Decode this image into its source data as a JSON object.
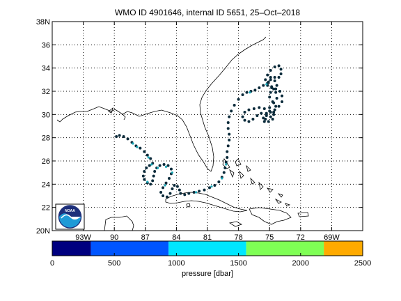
{
  "chart_data": {
    "type": "scatter",
    "title": "WMO ID 4901646, internal ID 5651, 25–Oct–2018",
    "x_range_lon": [
      -96,
      -66
    ],
    "y_range_lat": [
      20,
      38
    ],
    "y_ticks": [
      "20N",
      "22",
      "24",
      "26",
      "28",
      "30",
      "32",
      "34",
      "36",
      "38N"
    ],
    "y_tick_values": [
      20,
      22,
      24,
      26,
      28,
      30,
      32,
      34,
      36,
      38
    ],
    "x_ticks": [
      "93W",
      "90",
      "87",
      "84",
      "81",
      "78",
      "75",
      "72",
      "69W"
    ],
    "x_tick_values": [
      -93,
      -90,
      -87,
      -84,
      -81,
      -78,
      -75,
      -72,
      -69
    ],
    "grid": true,
    "colorbar": {
      "label": "pressure [dbar]",
      "ticks": [
        "0",
        "500",
        "1000",
        "1500",
        "2000",
        "2500"
      ],
      "tick_values": [
        0,
        500,
        1000,
        1500,
        2000,
        2500
      ],
      "segments": [
        {
          "from": 0,
          "to": 312,
          "color": "#00007f"
        },
        {
          "from": 312,
          "to": 937,
          "color": "#0055ff"
        },
        {
          "from": 937,
          "to": 1562,
          "color": "#00e6ff"
        },
        {
          "from": 1562,
          "to": 2187,
          "color": "#7fff55"
        },
        {
          "from": 2187,
          "to": 2500,
          "color": "#ffaa00"
        }
      ]
    },
    "track_color": "#0a2a3a",
    "highlight_color": "#1aa9b9",
    "track_lonlat": [
      [
        -89.8,
        28.1
      ],
      [
        -89.5,
        28.2
      ],
      [
        -89.1,
        28.1
      ],
      [
        -88.7,
        27.9
      ],
      [
        -88.3,
        27.6
      ],
      [
        -87.9,
        27.3
      ],
      [
        -87.5,
        27.1
      ],
      [
        -87.1,
        26.8
      ],
      [
        -86.8,
        26.5
      ],
      [
        -86.5,
        26.2
      ],
      [
        -86.3,
        25.8
      ],
      [
        -86.6,
        25.6
      ],
      [
        -86.9,
        25.4
      ],
      [
        -87.1,
        25.1
      ],
      [
        -87.2,
        24.7
      ],
      [
        -87.1,
        24.4
      ],
      [
        -86.8,
        24.1
      ],
      [
        -86.5,
        24.0
      ],
      [
        -86.3,
        24.3
      ],
      [
        -86.2,
        24.7
      ],
      [
        -86.1,
        25.1
      ],
      [
        -85.9,
        25.4
      ],
      [
        -85.6,
        25.6
      ],
      [
        -85.2,
        25.7
      ],
      [
        -84.8,
        25.6
      ],
      [
        -84.5,
        25.3
      ],
      [
        -84.5,
        24.9
      ],
      [
        -84.7,
        24.5
      ],
      [
        -85.0,
        24.1
      ],
      [
        -85.3,
        23.7
      ],
      [
        -85.5,
        23.3
      ],
      [
        -85.3,
        23.0
      ],
      [
        -84.9,
        22.9
      ],
      [
        -84.6,
        23.2
      ],
      [
        -84.4,
        23.6
      ],
      [
        -84.2,
        23.9
      ],
      [
        -83.9,
        23.8
      ],
      [
        -83.7,
        23.5
      ],
      [
        -83.6,
        23.2
      ],
      [
        -83.2,
        23.1
      ],
      [
        -82.8,
        23.2
      ],
      [
        -82.3,
        23.3
      ],
      [
        -81.8,
        23.4
      ],
      [
        -81.3,
        23.5
      ],
      [
        -80.8,
        23.7
      ],
      [
        -80.3,
        23.9
      ],
      [
        -79.9,
        24.2
      ],
      [
        -79.6,
        24.6
      ],
      [
        -79.4,
        25.0
      ],
      [
        -79.3,
        25.4
      ],
      [
        -79.2,
        25.9
      ],
      [
        -79.1,
        26.3
      ],
      [
        -79.1,
        26.8
      ],
      [
        -79.0,
        27.3
      ],
      [
        -78.9,
        27.8
      ],
      [
        -78.9,
        28.3
      ],
      [
        -79.0,
        28.8
      ],
      [
        -79.0,
        29.3
      ],
      [
        -78.9,
        29.8
      ],
      [
        -78.7,
        30.3
      ],
      [
        -78.4,
        30.8
      ],
      [
        -78.0,
        31.3
      ],
      [
        -77.6,
        31.7
      ],
      [
        -77.2,
        31.9
      ],
      [
        -76.8,
        32.0
      ],
      [
        -76.4,
        32.1
      ],
      [
        -76.0,
        32.3
      ],
      [
        -75.6,
        32.5
      ],
      [
        -75.2,
        32.7
      ],
      [
        -74.9,
        33.0
      ],
      [
        -74.5,
        33.2
      ],
      [
        -74.1,
        33.2
      ],
      [
        -73.9,
        33.5
      ],
      [
        -73.9,
        33.9
      ],
      [
        -74.1,
        34.2
      ],
      [
        -74.5,
        34.1
      ],
      [
        -74.9,
        33.8
      ],
      [
        -75.2,
        33.4
      ],
      [
        -75.4,
        33.0
      ],
      [
        -75.2,
        32.5
      ],
      [
        -74.8,
        32.3
      ],
      [
        -74.4,
        32.2
      ],
      [
        -74.0,
        32.0
      ],
      [
        -73.8,
        31.6
      ],
      [
        -73.8,
        31.1
      ],
      [
        -74.1,
        30.7
      ],
      [
        -74.5,
        30.4
      ],
      [
        -74.9,
        30.2
      ],
      [
        -75.3,
        30.0
      ],
      [
        -75.6,
        29.7
      ],
      [
        -75.5,
        29.4
      ],
      [
        -75.1,
        29.4
      ],
      [
        -74.7,
        29.6
      ],
      [
        -74.6,
        30.0
      ],
      [
        -75.0,
        30.3
      ],
      [
        -75.5,
        30.5
      ],
      [
        -76.0,
        30.6
      ],
      [
        -76.5,
        30.5
      ],
      [
        -77.0,
        30.4
      ],
      [
        -77.4,
        30.2
      ],
      [
        -77.6,
        29.8
      ],
      [
        -77.4,
        29.5
      ],
      [
        -77.0,
        29.4
      ],
      [
        -76.6,
        29.6
      ],
      [
        -76.2,
        29.9
      ],
      [
        -75.8,
        30.1
      ],
      [
        -75.3,
        29.9
      ],
      [
        -74.9,
        29.8
      ],
      [
        -74.6,
        30.2
      ],
      [
        -74.4,
        30.7
      ],
      [
        -74.7,
        31.1
      ],
      [
        -75.0,
        31.5
      ],
      [
        -74.9,
        31.9
      ],
      [
        -74.6,
        32.2
      ],
      [
        -74.3,
        32.5
      ],
      [
        -74.5,
        32.9
      ],
      [
        -74.9,
        33.2
      ],
      [
        -75.1,
        32.8
      ],
      [
        -74.8,
        32.4
      ],
      [
        -74.4,
        31.9
      ],
      [
        -74.3,
        31.4
      ],
      [
        -74.6,
        31.0
      ],
      [
        -75.0,
        30.6
      ],
      [
        -75.3,
        30.1
      ],
      [
        -75.4,
        29.6
      ]
    ],
    "highlight_lonlat": [
      [
        -88.2,
        27.5
      ],
      [
        -87.8,
        27.2
      ],
      [
        -86.7,
        26.3
      ],
      [
        -86.4,
        25.7
      ],
      [
        -85.8,
        25.4
      ],
      [
        -85.0,
        25.5
      ],
      [
        -84.4,
        25.0
      ],
      [
        -86.8,
        24.2
      ],
      [
        -85.1,
        23.9
      ],
      [
        -82.1,
        23.3
      ],
      [
        -80.6,
        23.8
      ],
      [
        -79.6,
        24.5
      ],
      [
        -79.2,
        25.7
      ],
      [
        -76.9,
        31.9
      ],
      [
        -75.3,
        32.6
      ]
    ]
  },
  "logo": {
    "text": "NOAA"
  }
}
